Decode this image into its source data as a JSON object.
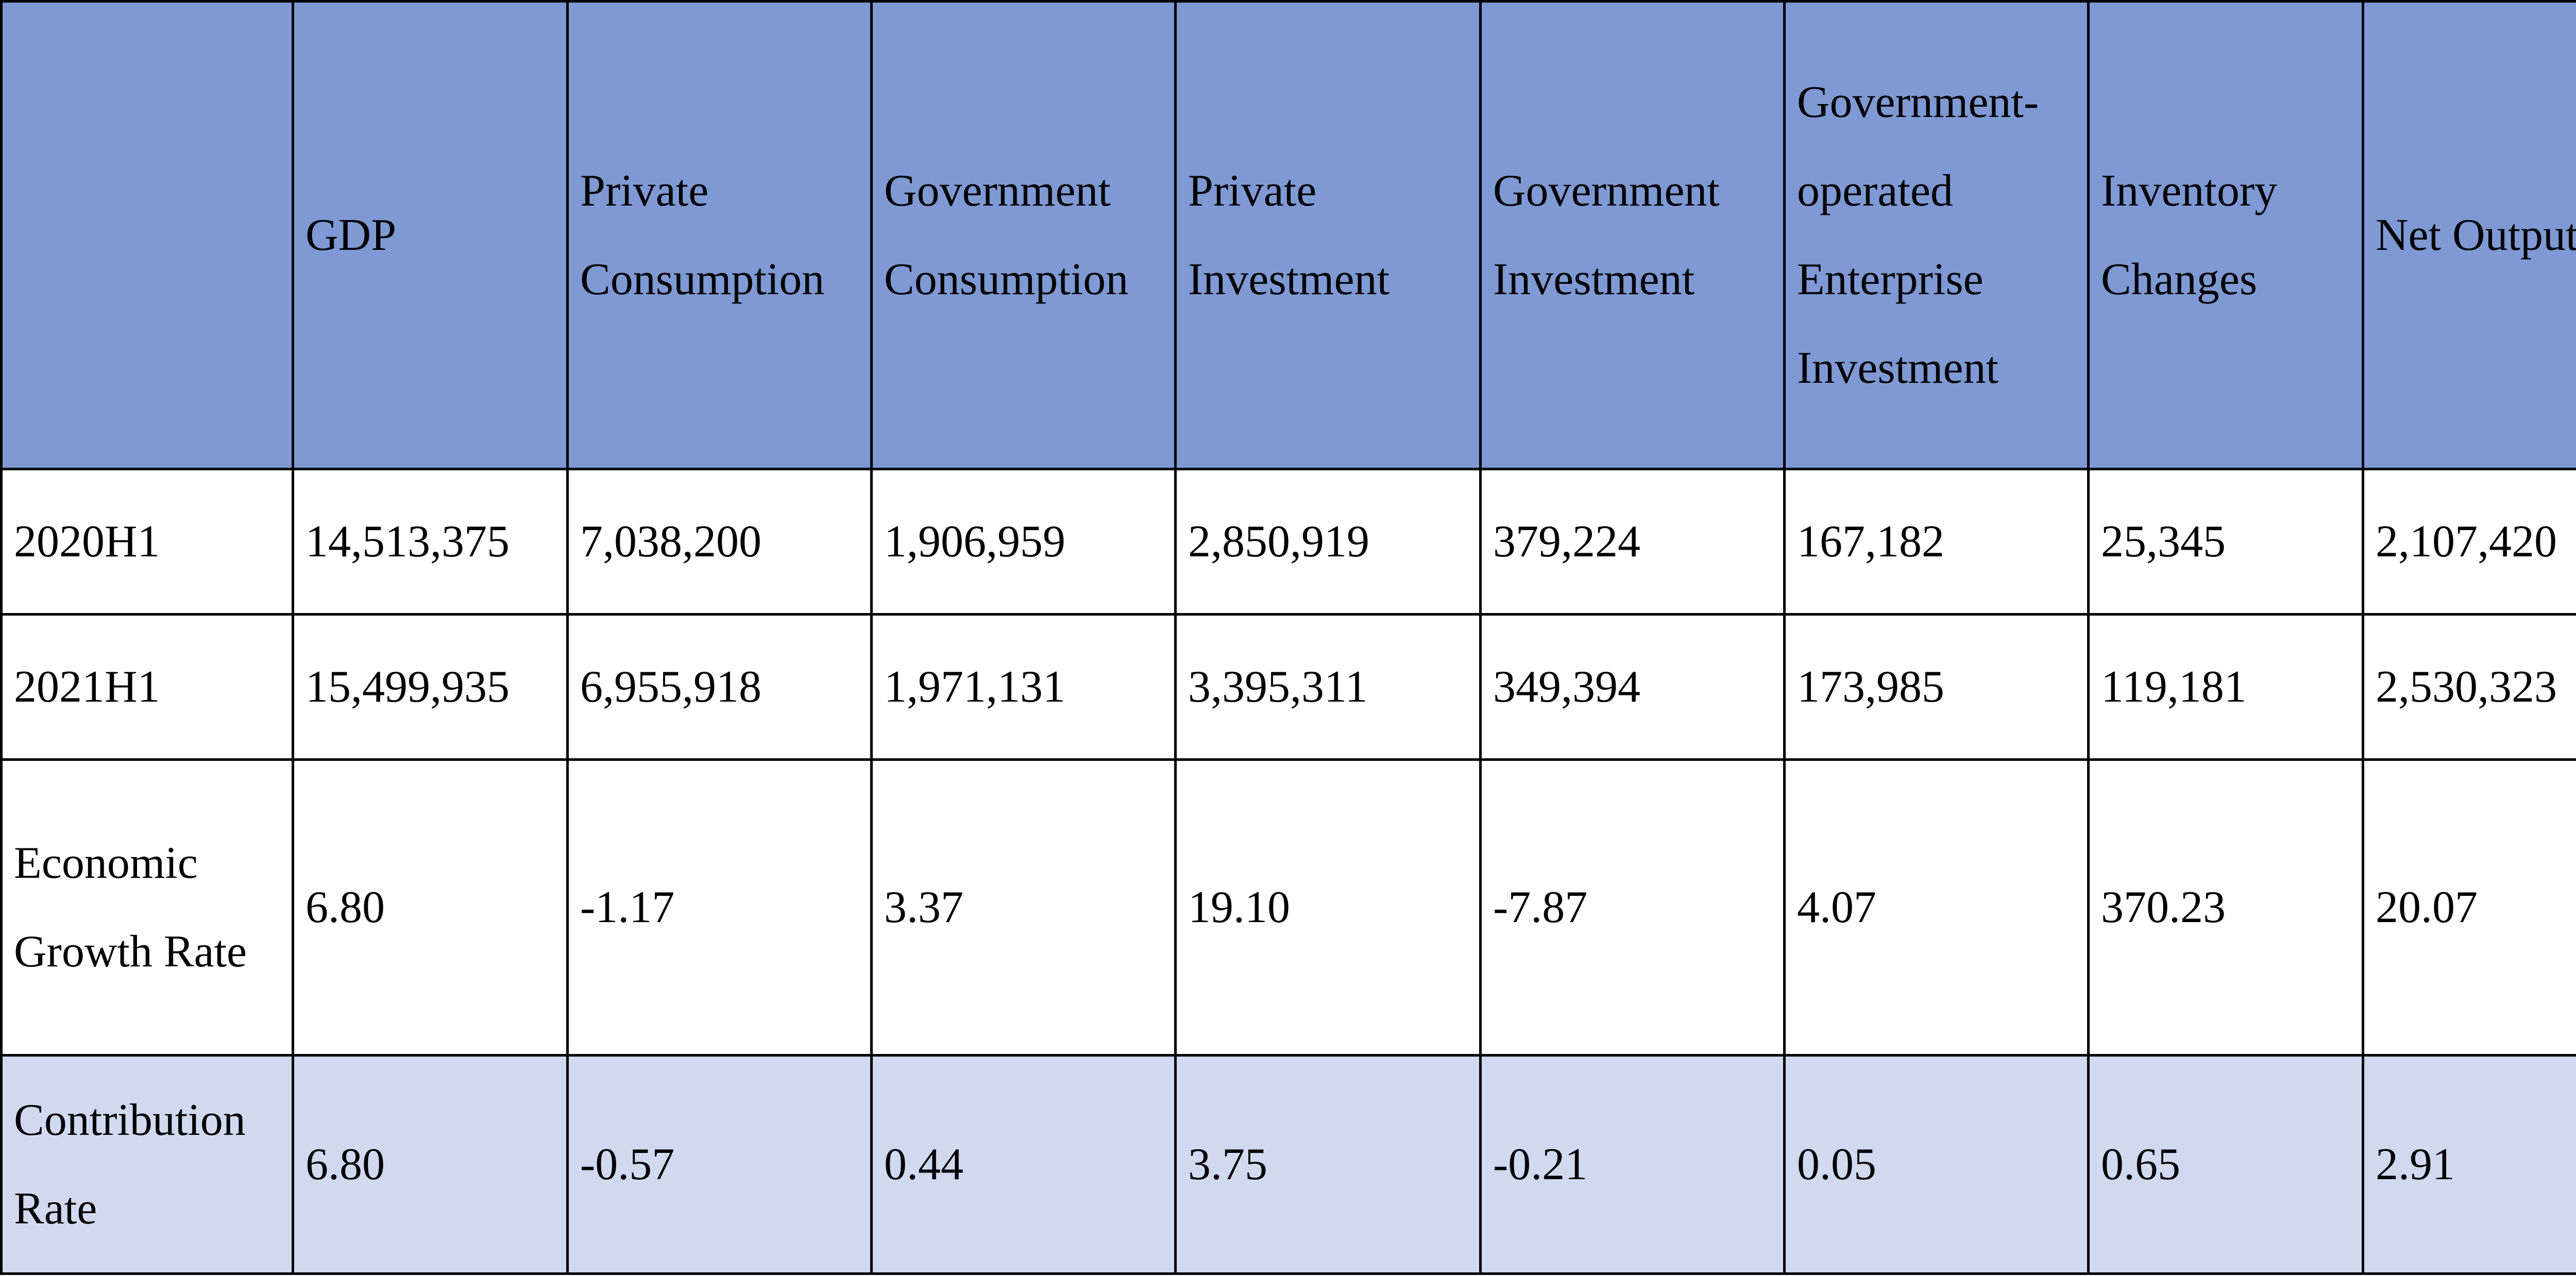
{
  "chart_data": {
    "type": "table",
    "columns": [
      "",
      "GDP",
      "Private Consumption",
      "Government Consumption",
      "Private Investment",
      "Government Investment",
      "Government-operated Enterprise Investment",
      "Inventory Changes",
      "Net Output"
    ],
    "rows": [
      {
        "label": "2020H1",
        "values": [
          "14,513,375",
          "7,038,200",
          "1,906,959",
          "2,850,919",
          "379,224",
          "167,182",
          "25,345",
          "2,107,420"
        ]
      },
      {
        "label": "2021H1",
        "values": [
          "15,499,935",
          "6,955,918",
          "1,971,131",
          "3,395,311",
          "349,394",
          "173,985",
          "119,181",
          "2,530,323"
        ]
      },
      {
        "label": "Economic Growth Rate",
        "values": [
          "6.80",
          "-1.17",
          "3.37",
          "19.10",
          "-7.87",
          "4.07",
          "370.23",
          "20.07"
        ]
      },
      {
        "label": "Contribution Rate",
        "values": [
          "6.80",
          "-0.57",
          "0.44",
          "3.75",
          "-0.21",
          "0.05",
          "0.65",
          "2.91"
        ]
      }
    ]
  },
  "colors": {
    "header_background": "#7e99d3",
    "highlight_row_background": "#d1d9f1",
    "border": "#000000"
  }
}
